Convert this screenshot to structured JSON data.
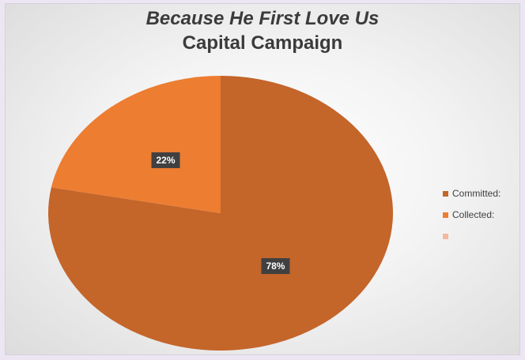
{
  "chart_data": {
    "type": "pie",
    "title": "Because He First Love Us",
    "subtitle": "Capital Campaign",
    "slices": [
      {
        "label": "Committed:",
        "value": 78,
        "color": "#c4652a"
      },
      {
        "label": "Collected:",
        "value": 22,
        "color": "#ed7d31"
      },
      {
        "label": "",
        "value": 0,
        "color": "#f4b8a0"
      }
    ],
    "data_labels": [
      "78%",
      "22%"
    ],
    "legend_placement": "right"
  }
}
